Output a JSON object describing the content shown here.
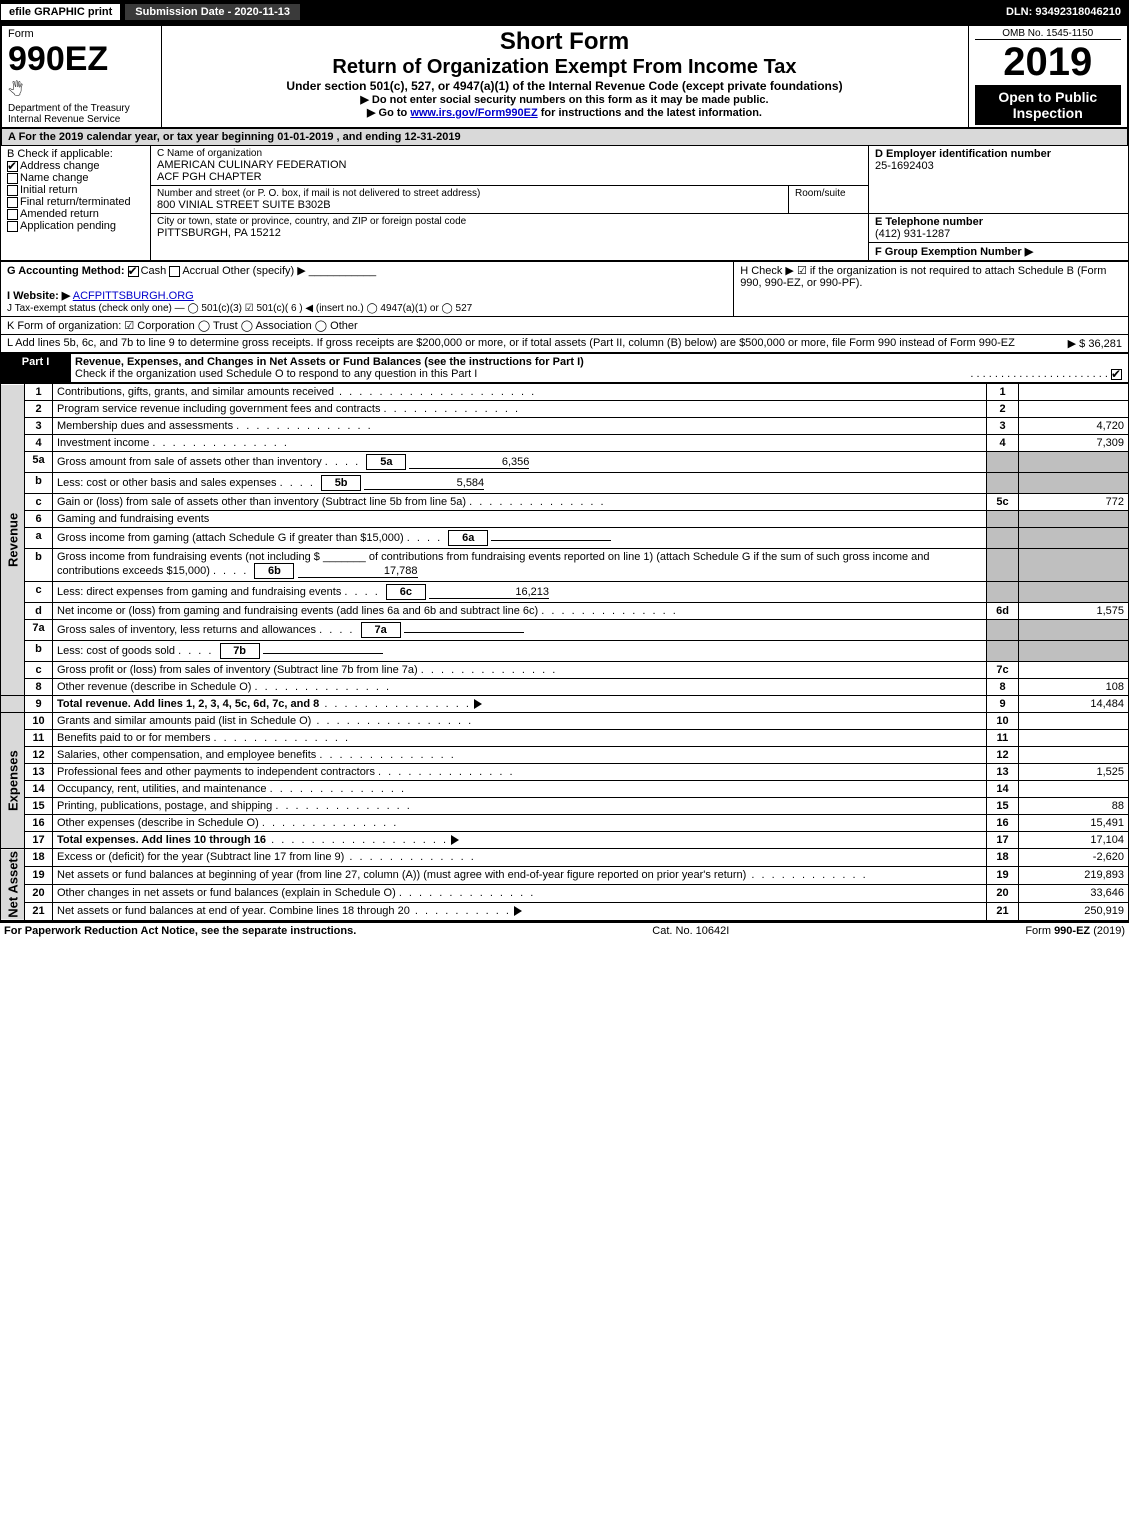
{
  "topbar": {
    "efile": "efile GRAPHIC print",
    "submission_label": "Submission Date - 2020-11-13",
    "dln": "DLN: 93492318046210"
  },
  "header": {
    "form_word": "Form",
    "form_number": "990EZ",
    "dept": "Department of the Treasury",
    "irs": "Internal Revenue Service",
    "short_form": "Short Form",
    "title": "Return of Organization Exempt From Income Tax",
    "subtitle": "Under section 501(c), 527, or 4947(a)(1) of the Internal Revenue Code (except private foundations)",
    "note1": "▶ Do not enter social security numbers on this form as it may be made public.",
    "note2": "▶ Go to www.irs.gov/Form990EZ for instructions and the latest information.",
    "omb": "OMB No. 1545-1150",
    "year": "2019",
    "open": "Open to Public Inspection"
  },
  "period": {
    "text": "A For the 2019 calendar year, or tax year beginning 01-01-2019 , and ending 12-31-2019"
  },
  "boxB": {
    "label": "B Check if applicable:",
    "items": [
      {
        "label": "Address change",
        "checked": true
      },
      {
        "label": "Name change",
        "checked": false
      },
      {
        "label": "Initial return",
        "checked": false
      },
      {
        "label": "Final return/terminated",
        "checked": false
      },
      {
        "label": "Amended return",
        "checked": false
      },
      {
        "label": "Application pending",
        "checked": false
      }
    ]
  },
  "boxC": {
    "name_label": "C Name of organization",
    "name1": "AMERICAN CULINARY FEDERATION",
    "name2": "ACF PGH CHAPTER",
    "addr_label": "Number and street (or P. O. box, if mail is not delivered to street address)",
    "room_label": "Room/suite",
    "addr": "800 VINIAL STREET SUITE B302B",
    "city_label": "City or town, state or province, country, and ZIP or foreign postal code",
    "city": "PITTSBURGH, PA  15212"
  },
  "boxD": {
    "label": "D Employer identification number",
    "value": "25-1692403"
  },
  "boxE": {
    "label": "E Telephone number",
    "value": "(412) 931-1287"
  },
  "boxF": {
    "label": "F Group Exemption Number ▶",
    "value": ""
  },
  "boxG": {
    "label": "G Accounting Method:",
    "cash": "Cash",
    "accrual": "Accrual",
    "other": "Other (specify) ▶"
  },
  "boxH": {
    "text": "H Check ▶ ☑ if the organization is not required to attach Schedule B (Form 990, 990-EZ, or 990-PF)."
  },
  "boxI": {
    "label": "I Website: ▶",
    "value": "ACFPITTSBURGH.ORG"
  },
  "boxJ": {
    "text": "J Tax-exempt status (check only one) —  ◯ 501(c)(3)  ☑ 501(c)( 6 ) ◀ (insert no.)  ◯ 4947(a)(1) or  ◯ 527"
  },
  "boxK": {
    "text": "K Form of organization:  ☑ Corporation  ◯ Trust  ◯ Association  ◯ Other"
  },
  "boxL": {
    "text": "L Add lines 5b, 6c, and 7b to line 9 to determine gross receipts. If gross receipts are $200,000 or more, or if total assets (Part II, column (B) below) are $500,000 or more, file Form 990 instead of Form 990-EZ",
    "amount": "▶ $ 36,281"
  },
  "part1": {
    "label": "Part I",
    "title": "Revenue, Expenses, and Changes in Net Assets or Fund Balances (see the instructions for Part I)",
    "check_line": "Check if the organization used Schedule O to respond to any question in this Part I"
  },
  "sections": {
    "revenue": "Revenue",
    "expenses": "Expenses",
    "netassets": "Net Assets"
  },
  "lines": {
    "l1": {
      "no": "1",
      "desc": "Contributions, gifts, grants, and similar amounts received",
      "col": "1",
      "val": ""
    },
    "l2": {
      "no": "2",
      "desc": "Program service revenue including government fees and contracts",
      "col": "2",
      "val": ""
    },
    "l3": {
      "no": "3",
      "desc": "Membership dues and assessments",
      "col": "3",
      "val": "4,720"
    },
    "l4": {
      "no": "4",
      "desc": "Investment income",
      "col": "4",
      "val": "7,309"
    },
    "l5a": {
      "no": "5a",
      "desc": "Gross amount from sale of assets other than inventory",
      "box": "5a",
      "boxval": "6,356"
    },
    "l5b": {
      "no": "b",
      "desc": "Less: cost or other basis and sales expenses",
      "box": "5b",
      "boxval": "5,584"
    },
    "l5c": {
      "no": "c",
      "desc": "Gain or (loss) from sale of assets other than inventory (Subtract line 5b from line 5a)",
      "col": "5c",
      "val": "772"
    },
    "l6": {
      "no": "6",
      "desc": "Gaming and fundraising events"
    },
    "l6a": {
      "no": "a",
      "desc": "Gross income from gaming (attach Schedule G if greater than $15,000)",
      "box": "6a",
      "boxval": ""
    },
    "l6b": {
      "no": "b",
      "desc": "Gross income from fundraising events (not including $ _______ of contributions from fundraising events reported on line 1) (attach Schedule G if the sum of such gross income and contributions exceeds $15,000)",
      "box": "6b",
      "boxval": "17,788"
    },
    "l6c": {
      "no": "c",
      "desc": "Less: direct expenses from gaming and fundraising events",
      "box": "6c",
      "boxval": "16,213"
    },
    "l6d": {
      "no": "d",
      "desc": "Net income or (loss) from gaming and fundraising events (add lines 6a and 6b and subtract line 6c)",
      "col": "6d",
      "val": "1,575"
    },
    "l7a": {
      "no": "7a",
      "desc": "Gross sales of inventory, less returns and allowances",
      "box": "7a",
      "boxval": ""
    },
    "l7b": {
      "no": "b",
      "desc": "Less: cost of goods sold",
      "box": "7b",
      "boxval": ""
    },
    "l7c": {
      "no": "c",
      "desc": "Gross profit or (loss) from sales of inventory (Subtract line 7b from line 7a)",
      "col": "7c",
      "val": ""
    },
    "l8": {
      "no": "8",
      "desc": "Other revenue (describe in Schedule O)",
      "col": "8",
      "val": "108"
    },
    "l9": {
      "no": "9",
      "desc": "Total revenue. Add lines 1, 2, 3, 4, 5c, 6d, 7c, and 8",
      "col": "9",
      "val": "14,484",
      "arrow": true,
      "bold": true
    },
    "l10": {
      "no": "10",
      "desc": "Grants and similar amounts paid (list in Schedule O)",
      "col": "10",
      "val": ""
    },
    "l11": {
      "no": "11",
      "desc": "Benefits paid to or for members",
      "col": "11",
      "val": ""
    },
    "l12": {
      "no": "12",
      "desc": "Salaries, other compensation, and employee benefits",
      "col": "12",
      "val": ""
    },
    "l13": {
      "no": "13",
      "desc": "Professional fees and other payments to independent contractors",
      "col": "13",
      "val": "1,525"
    },
    "l14": {
      "no": "14",
      "desc": "Occupancy, rent, utilities, and maintenance",
      "col": "14",
      "val": ""
    },
    "l15": {
      "no": "15",
      "desc": "Printing, publications, postage, and shipping",
      "col": "15",
      "val": "88"
    },
    "l16": {
      "no": "16",
      "desc": "Other expenses (describe in Schedule O)",
      "col": "16",
      "val": "15,491"
    },
    "l17": {
      "no": "17",
      "desc": "Total expenses. Add lines 10 through 16",
      "col": "17",
      "val": "17,104",
      "arrow": true,
      "bold": true
    },
    "l18": {
      "no": "18",
      "desc": "Excess or (deficit) for the year (Subtract line 17 from line 9)",
      "col": "18",
      "val": "-2,620"
    },
    "l19": {
      "no": "19",
      "desc": "Net assets or fund balances at beginning of year (from line 27, column (A)) (must agree with end-of-year figure reported on prior year's return)",
      "col": "19",
      "val": "219,893"
    },
    "l20": {
      "no": "20",
      "desc": "Other changes in net assets or fund balances (explain in Schedule O)",
      "col": "20",
      "val": "33,646"
    },
    "l21": {
      "no": "21",
      "desc": "Net assets or fund balances at end of year. Combine lines 18 through 20",
      "col": "21",
      "val": "250,919",
      "arrow": true
    }
  },
  "footer": {
    "left": "For Paperwork Reduction Act Notice, see the separate instructions.",
    "mid": "Cat. No. 10642I",
    "right": "Form 990-EZ (2019)"
  }
}
